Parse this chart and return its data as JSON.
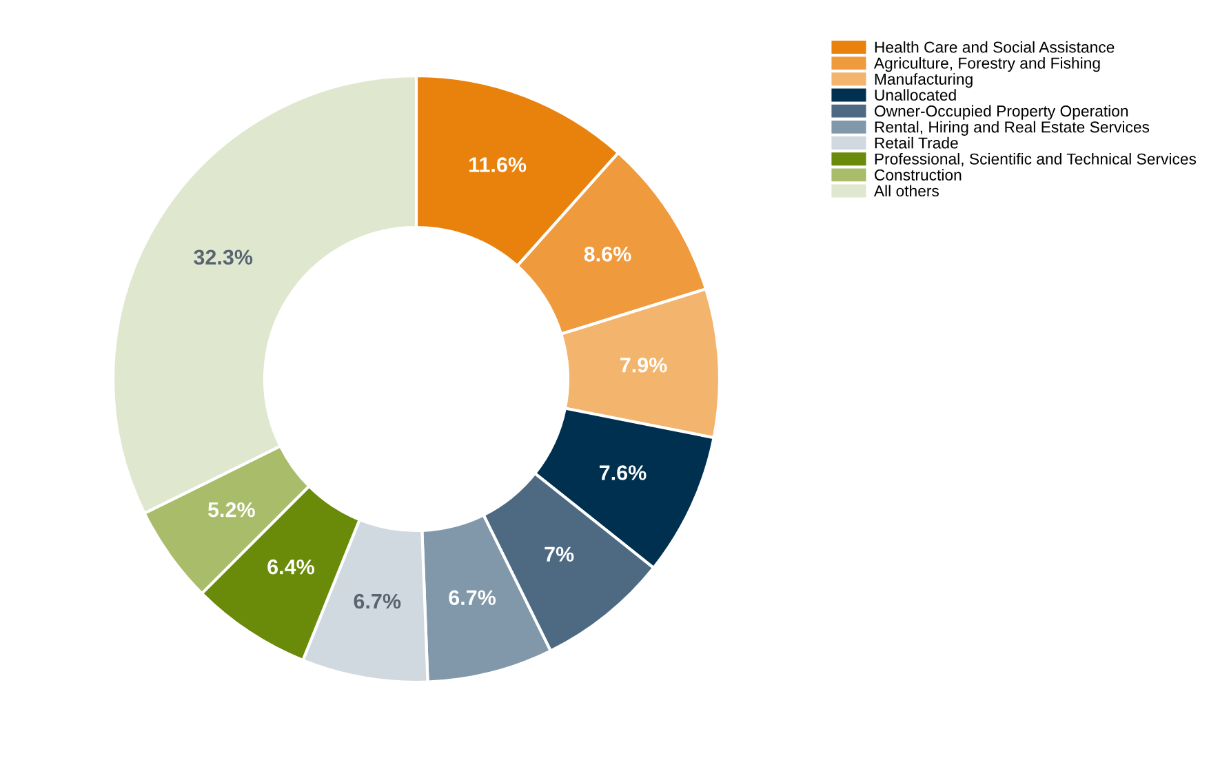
{
  "chart_data": {
    "type": "donut",
    "categories": [
      "Health Care and Social Assistance",
      "Agriculture, Forestry and Fishing",
      "Manufacturing",
      "Unallocated",
      "Owner-Occupied Property Operation",
      "Rental, Hiring and Real Estate Services",
      "Retail Trade",
      "Professional, Scientific and Technical Services",
      "Construction",
      "All others"
    ],
    "values": [
      11.6,
      8.6,
      7.9,
      7.6,
      7,
      6.7,
      6.7,
      6.4,
      5.2,
      32.3
    ],
    "value_labels": [
      "11.6%",
      "8.6%",
      "7.9%",
      "7.6%",
      "7%",
      "6.7%",
      "6.7%",
      "6.4%",
      "5.2%",
      "32.3%"
    ],
    "colors": [
      "#e8820c",
      "#f09a3e",
      "#f3b46e",
      "#00304f",
      "#4d6a82",
      "#8098aa",
      "#d0d8e0",
      "#6a8a0a",
      "#a8bc6a",
      "#dfe8cf"
    ],
    "legend": "top right"
  }
}
